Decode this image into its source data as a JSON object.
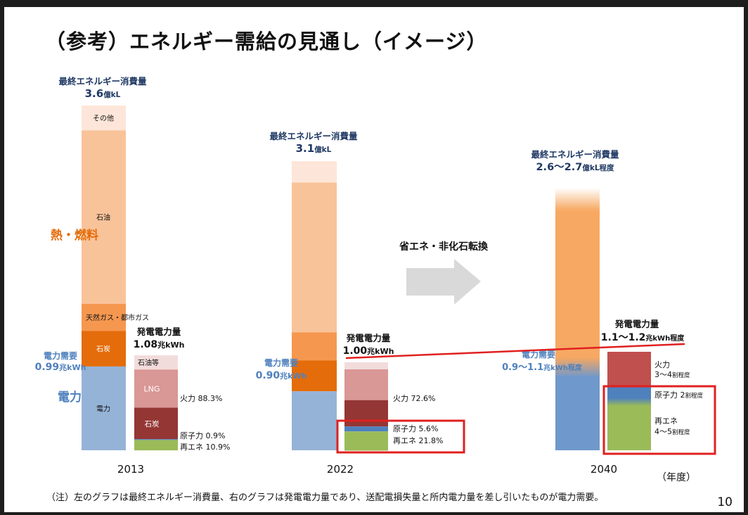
{
  "slide": {
    "title": "（参考）エネルギー需給の見通し（イメージ）",
    "page_number": "10",
    "note": "（注）左のグラフは最終エネルギー消費量、右のグラフは発電電力量であり、送配電損失量と所内電力量を差し引いたものが電力需要。",
    "year_unit": "（年度）",
    "arrow_label": "省エネ・非化石転換"
  },
  "colors": {
    "other": "#fde6d9",
    "oil": "#f9c39a",
    "oil_2040": "#f7a862",
    "gas": "#f5974f",
    "coal_heat": "#e46c0a",
    "electricity": "#95b3d7",
    "electricity_2040": "#6f98cc",
    "oil_power": "#f2dcdb",
    "lng": "#d99795",
    "coal_power": "#943634",
    "thermal_2040": "#c0504d",
    "nuclear": "#4f81bd",
    "renewable": "#9bbb59",
    "heat_label": "#e46c0a",
    "power_label": "#4f81bd",
    "navy_text": "#1f3864",
    "highlight": "#e02020",
    "arrow": "#d9d9d9"
  },
  "chart_data": {
    "type": "bar",
    "categories": [
      "2013",
      "2022",
      "2040"
    ],
    "final_energy_consumption": {
      "label": "最終エネルギー消費量",
      "values_display": [
        "3.6",
        "3.1",
        "2.6〜2.7"
      ],
      "units_display": [
        "億kL",
        "億kL",
        "億kL程度"
      ],
      "values": [
        3.6,
        3.1,
        2.65
      ],
      "breakdown_2013": [
        {
          "name": "その他",
          "share": 0.072
        },
        {
          "name": "石油",
          "share": 0.503
        },
        {
          "name": "天然ガス・都市ガス",
          "share": 0.079
        },
        {
          "name": "石炭",
          "share": 0.103
        },
        {
          "name": "電力",
          "share": 0.243
        }
      ],
      "breakdown_2022": [
        {
          "share": 0.074
        },
        {
          "share": 0.518
        },
        {
          "share": 0.097
        },
        {
          "share": 0.107
        },
        {
          "share": 0.204
        }
      ],
      "breakdown_2040": [
        {
          "share": 0.086
        },
        {
          "share": 0.598
        },
        {
          "share": 0.316
        }
      ]
    },
    "power_generation": {
      "label": "発電電力量",
      "values_display": [
        "1.08",
        "1.00",
        "1.1〜1.2"
      ],
      "units_display": [
        "兆kWh",
        "兆kWh",
        "兆kWh程度"
      ],
      "values": [
        1.08,
        1.0,
        1.15
      ],
      "mix_2013": {
        "segments": [
          {
            "name": "石油等",
            "share": 0.15
          },
          {
            "name": "LNG",
            "share": 0.402
          },
          {
            "name": "石炭",
            "share": 0.331
          },
          {
            "name": "原子力",
            "share": 0.009
          },
          {
            "name": "再エネ",
            "share": 0.109
          }
        ],
        "thermal": "火力 88.3%",
        "nuclear": "原子力 0.9%",
        "renewable": "再エネ 10.9%"
      },
      "mix_2022": {
        "segments": [
          {
            "share": 0.08
          },
          {
            "share": 0.35
          },
          {
            "share": 0.3
          },
          {
            "share": 0.056
          },
          {
            "share": 0.218
          }
        ],
        "thermal": "火力 72.6%",
        "nuclear": "原子力 5.6%",
        "renewable": "再エネ 21.8%"
      },
      "mix_2040": {
        "segments": [
          {
            "share": 0.35
          },
          {
            "share": 0.2
          },
          {
            "share": 0.45
          }
        ],
        "thermal": "火力",
        "thermal_range": "3〜4",
        "nuclear": "原子力",
        "nuclear_range": "2",
        "renewable": "再エネ",
        "renewable_range": "4〜5",
        "range_unit": "割程度"
      }
    },
    "electricity_demand": {
      "label": "電力需要",
      "values_display": [
        "0.99",
        "0.90",
        "0.9〜1.1"
      ],
      "units_display": [
        "兆kWh",
        "兆kWh",
        "兆kWh程度"
      ],
      "values": [
        0.99,
        0.9,
        1.0
      ]
    },
    "side_labels": {
      "heat_fuel": "熱・燃料",
      "electricity": "電力"
    }
  }
}
